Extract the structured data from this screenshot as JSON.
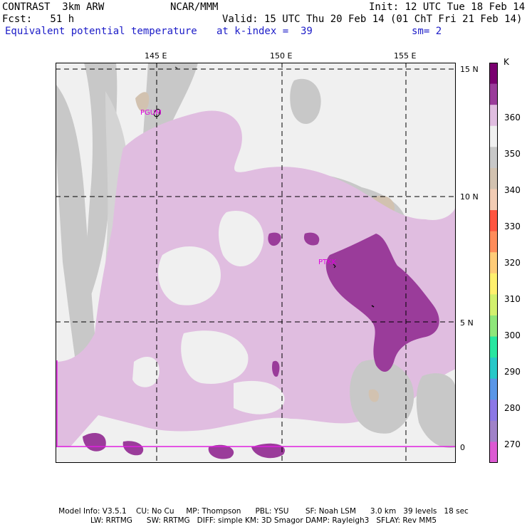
{
  "header": {
    "line1_left": "CONTRAST  3km ARW",
    "line1_mid": "NCAR/MMM",
    "line1_right": "Init: 12 UTC Tue 18 Feb 14",
    "line2_left": "Fcst:   51 h",
    "line2_right": "Valid: 15 UTC Thu 20 Feb 14 (01 ChT Fri 21 Feb 14)",
    "line3_left": "Equivalent potential temperature",
    "line3_mid": "at k-index =  39",
    "line3_right": "sm= 2"
  },
  "map": {
    "lon_labels": [
      "145 E",
      "150 E",
      "155 E"
    ],
    "lat_labels": [
      "15 N",
      "10 N",
      "5 N",
      "0"
    ],
    "stations": [
      "PGUM",
      "PTKK"
    ]
  },
  "colorbar": {
    "unit": "K",
    "levels": [
      "360",
      "350",
      "340",
      "330",
      "320",
      "310",
      "300",
      "290",
      "280",
      "270"
    ],
    "colors": [
      "#7a0070",
      "#9a3c9a",
      "#e0bde0",
      "#f0f0f0",
      "#c8c8c8",
      "#d2c2b0",
      "#f2ccb4",
      "#ff5540",
      "#ff8c5a",
      "#ffcc78",
      "#fff06e",
      "#d2f06e",
      "#8ee67a",
      "#28e6a0",
      "#28c8c8",
      "#5a96e6",
      "#8c78e6",
      "#a082c8",
      "#dc5ad2"
    ]
  },
  "footer": {
    "line1": "Model Info: V3.5.1    CU: No Cu     MP: Thompson      PBL: YSU       SF: Noah LSM      3.0 km   39 levels   18 sec",
    "line2": "LW: RRTMG      SW: RRTMG   DIFF: simple KM: 3D Smagor DAMP: Rayleigh3   SFLAY: Rev MM5"
  }
}
